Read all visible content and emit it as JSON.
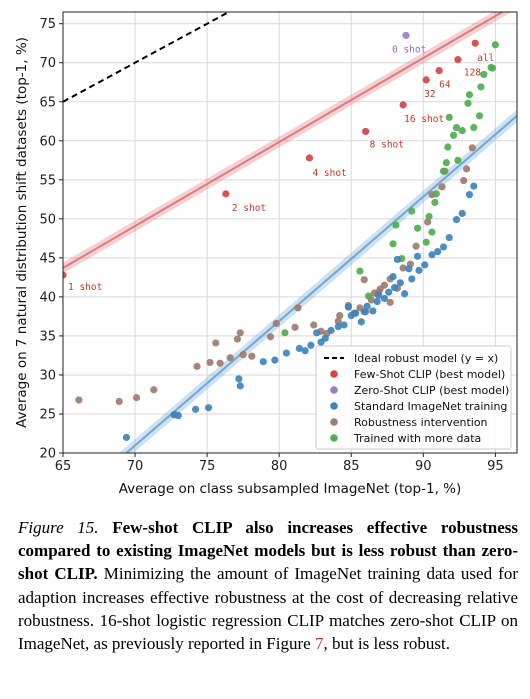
{
  "chart_data": {
    "type": "scatter",
    "xlabel": "Average on class subsampled ImageNet (top-1, %)",
    "ylabel": "Average on 7 natural distribution shift datasets (top-1, %)",
    "xlim": [
      65,
      96.5
    ],
    "ylim": [
      20,
      76.5
    ],
    "xticks": [
      65,
      70,
      75,
      80,
      85,
      90,
      95
    ],
    "yticks": [
      20,
      25,
      30,
      35,
      40,
      45,
      50,
      55,
      60,
      65,
      70,
      75
    ],
    "grid": true,
    "legend_position": "lower-right",
    "legend": [
      {
        "label": "Ideal robust model (y = x)",
        "kind": "dashed-line",
        "color": "#000000"
      },
      {
        "label": "Few-Shot CLIP (best model)",
        "kind": "marker",
        "color": "#d6424a"
      },
      {
        "label": "Zero-Shot CLIP (best model)",
        "kind": "marker",
        "color": "#9b7dc5"
      },
      {
        "label": "Standard ImageNet training",
        "kind": "marker",
        "color": "#3d84bd"
      },
      {
        "label": "Robustness intervention",
        "kind": "marker",
        "color": "#a07b70"
      },
      {
        "label": "Trained with more data",
        "kind": "marker",
        "color": "#4fae4f"
      }
    ],
    "ideal_line": {
      "x": [
        65,
        76.5
      ],
      "y": [
        65,
        76.5
      ]
    },
    "fit_lines": [
      {
        "name": "few-shot-fit",
        "color": "#e07b7f",
        "x": [
          65,
          96.5
        ],
        "y": [
          43.7,
          77.6
        ],
        "band": 0.7
      },
      {
        "name": "imagenet-fit",
        "color": "#6fa8d6",
        "x": [
          65,
          96.5
        ],
        "y": [
          13.0,
          63.2
        ],
        "band": 0.8
      }
    ],
    "series": [
      {
        "name": "Few-Shot CLIP (best model)",
        "color": "#d6424a",
        "points": [
          {
            "x": 65.0,
            "y": 42.8,
            "label": "1 shot"
          },
          {
            "x": 76.3,
            "y": 53.2,
            "label": "2 shot"
          },
          {
            "x": 82.1,
            "y": 57.8,
            "label": "4 shot"
          },
          {
            "x": 86.0,
            "y": 61.2,
            "label": "8 shot"
          },
          {
            "x": 88.6,
            "y": 64.6,
            "label": "16 shot"
          },
          {
            "x": 90.2,
            "y": 67.8,
            "label": "32"
          },
          {
            "x": 91.1,
            "y": 69.0,
            "label": "64"
          },
          {
            "x": 92.4,
            "y": 70.4,
            "label": "128"
          },
          {
            "x": 93.6,
            "y": 72.5,
            "label": "all"
          }
        ]
      },
      {
        "name": "Zero-Shot CLIP (best model)",
        "color": "#9b7dc5",
        "points": [
          {
            "x": 88.8,
            "y": 73.5,
            "label": "0 shot"
          }
        ]
      },
      {
        "name": "Standard ImageNet training",
        "color": "#3d84bd",
        "points": [
          {
            "x": 69.4,
            "y": 22.0
          },
          {
            "x": 72.7,
            "y": 24.9
          },
          {
            "x": 73.0,
            "y": 24.8
          },
          {
            "x": 74.2,
            "y": 25.6
          },
          {
            "x": 75.1,
            "y": 25.8
          },
          {
            "x": 77.3,
            "y": 28.6
          },
          {
            "x": 77.2,
            "y": 29.5
          },
          {
            "x": 78.9,
            "y": 31.7
          },
          {
            "x": 79.7,
            "y": 31.9
          },
          {
            "x": 80.5,
            "y": 32.8
          },
          {
            "x": 81.4,
            "y": 33.4
          },
          {
            "x": 81.8,
            "y": 33.1
          },
          {
            "x": 82.2,
            "y": 33.8
          },
          {
            "x": 82.6,
            "y": 35.4
          },
          {
            "x": 82.9,
            "y": 34.2
          },
          {
            "x": 83.2,
            "y": 34.7
          },
          {
            "x": 83.6,
            "y": 35.7
          },
          {
            "x": 84.1,
            "y": 36.2
          },
          {
            "x": 84.5,
            "y": 36.4
          },
          {
            "x": 85.0,
            "y": 37.6
          },
          {
            "x": 85.3,
            "y": 37.9
          },
          {
            "x": 85.7,
            "y": 36.8
          },
          {
            "x": 86.1,
            "y": 38.8
          },
          {
            "x": 86.5,
            "y": 38.2
          },
          {
            "x": 86.8,
            "y": 39.4
          },
          {
            "x": 87.3,
            "y": 39.8
          },
          {
            "x": 87.6,
            "y": 40.6
          },
          {
            "x": 88.0,
            "y": 41.2
          },
          {
            "x": 88.4,
            "y": 41.8
          },
          {
            "x": 88.7,
            "y": 40.4
          },
          {
            "x": 89.2,
            "y": 42.3
          },
          {
            "x": 89.7,
            "y": 43.4
          },
          {
            "x": 90.1,
            "y": 44.1
          },
          {
            "x": 90.6,
            "y": 45.4
          },
          {
            "x": 91.0,
            "y": 45.8
          },
          {
            "x": 91.4,
            "y": 46.4
          },
          {
            "x": 91.8,
            "y": 47.6
          },
          {
            "x": 92.3,
            "y": 49.9
          },
          {
            "x": 92.7,
            "y": 50.7
          },
          {
            "x": 93.2,
            "y": 53.1
          },
          {
            "x": 93.5,
            "y": 54.2
          },
          {
            "x": 87.9,
            "y": 42.6
          },
          {
            "x": 89.0,
            "y": 43.6
          },
          {
            "x": 86.9,
            "y": 40.2
          },
          {
            "x": 84.8,
            "y": 38.7
          },
          {
            "x": 85.9,
            "y": 38.1
          },
          {
            "x": 88.2,
            "y": 44.8
          },
          {
            "x": 89.6,
            "y": 45.2
          }
        ]
      },
      {
        "name": "Robustness intervention",
        "color": "#a07b70",
        "points": [
          {
            "x": 66.1,
            "y": 26.8
          },
          {
            "x": 68.9,
            "y": 26.6
          },
          {
            "x": 70.1,
            "y": 27.1
          },
          {
            "x": 71.3,
            "y": 28.1
          },
          {
            "x": 72.8,
            "y": 24.9
          },
          {
            "x": 74.3,
            "y": 31.1
          },
          {
            "x": 75.2,
            "y": 31.6
          },
          {
            "x": 75.9,
            "y": 31.5
          },
          {
            "x": 76.6,
            "y": 32.2
          },
          {
            "x": 77.5,
            "y": 32.6
          },
          {
            "x": 78.1,
            "y": 32.4
          },
          {
            "x": 75.6,
            "y": 34.1
          },
          {
            "x": 77.1,
            "y": 34.6
          },
          {
            "x": 77.3,
            "y": 35.4
          },
          {
            "x": 79.8,
            "y": 36.6
          },
          {
            "x": 81.1,
            "y": 36.1
          },
          {
            "x": 82.4,
            "y": 36.4
          },
          {
            "x": 82.9,
            "y": 35.6
          },
          {
            "x": 83.3,
            "y": 35.3
          },
          {
            "x": 84.2,
            "y": 37.6
          },
          {
            "x": 84.8,
            "y": 38.9
          },
          {
            "x": 85.2,
            "y": 37.9
          },
          {
            "x": 85.6,
            "y": 38.6
          },
          {
            "x": 86.0,
            "y": 38.1
          },
          {
            "x": 86.4,
            "y": 39.6
          },
          {
            "x": 86.9,
            "y": 40.6
          },
          {
            "x": 87.3,
            "y": 41.5
          },
          {
            "x": 87.7,
            "y": 42.3
          },
          {
            "x": 88.2,
            "y": 41.1
          },
          {
            "x": 88.6,
            "y": 43.7
          },
          {
            "x": 89.1,
            "y": 44.2
          },
          {
            "x": 89.5,
            "y": 46.5
          },
          {
            "x": 90.3,
            "y": 49.6
          },
          {
            "x": 90.6,
            "y": 53.1
          },
          {
            "x": 91.3,
            "y": 54.1
          },
          {
            "x": 91.5,
            "y": 56.1
          },
          {
            "x": 92.8,
            "y": 54.9
          },
          {
            "x": 93.0,
            "y": 56.4
          },
          {
            "x": 93.4,
            "y": 59.1
          },
          {
            "x": 81.3,
            "y": 38.6
          },
          {
            "x": 79.4,
            "y": 34.9
          },
          {
            "x": 87.0,
            "y": 41.0
          },
          {
            "x": 84.1,
            "y": 36.9
          },
          {
            "x": 85.9,
            "y": 42.2
          },
          {
            "x": 86.6,
            "y": 40.5
          },
          {
            "x": 87.7,
            "y": 39.3
          }
        ]
      },
      {
        "name": "Trained with more data",
        "color": "#4fae4f",
        "points": [
          {
            "x": 80.4,
            "y": 35.4
          },
          {
            "x": 85.6,
            "y": 43.3
          },
          {
            "x": 86.2,
            "y": 40.1
          },
          {
            "x": 87.9,
            "y": 46.8
          },
          {
            "x": 88.5,
            "y": 44.9
          },
          {
            "x": 89.6,
            "y": 48.8
          },
          {
            "x": 90.2,
            "y": 47.0
          },
          {
            "x": 90.4,
            "y": 50.3
          },
          {
            "x": 90.6,
            "y": 48.3
          },
          {
            "x": 90.8,
            "y": 52.1
          },
          {
            "x": 90.9,
            "y": 53.2
          },
          {
            "x": 91.4,
            "y": 56.1
          },
          {
            "x": 91.7,
            "y": 59.2
          },
          {
            "x": 91.8,
            "y": 63.0
          },
          {
            "x": 92.1,
            "y": 60.7
          },
          {
            "x": 92.4,
            "y": 57.5
          },
          {
            "x": 92.7,
            "y": 61.3
          },
          {
            "x": 93.1,
            "y": 64.8
          },
          {
            "x": 93.2,
            "y": 65.9
          },
          {
            "x": 93.5,
            "y": 61.7
          },
          {
            "x": 93.9,
            "y": 63.2
          },
          {
            "x": 94.0,
            "y": 66.9
          },
          {
            "x": 94.2,
            "y": 68.5
          },
          {
            "x": 94.7,
            "y": 69.4
          },
          {
            "x": 94.8,
            "y": 69.3
          },
          {
            "x": 95.0,
            "y": 72.3
          },
          {
            "x": 88.1,
            "y": 49.2
          },
          {
            "x": 89.2,
            "y": 51.0
          },
          {
            "x": 91.6,
            "y": 57.2
          },
          {
            "x": 92.3,
            "y": 61.7
          }
        ]
      }
    ]
  },
  "caption": {
    "lead": "Figure 15.",
    "bold": " Few-shot CLIP also increases effective robustness compared to existing ImageNet models but is less robust than zero-shot CLIP.",
    "text_1": " Minimizing the amount of ImageNet training data used for adaption increases effective robustness at the cost of decreasing relative robustness. 16-shot logistic regression CLIP matches zero-shot CLIP on ImageNet, as previously reported in Figure ",
    "ref": "7",
    "text_2": ", but is less robust."
  }
}
